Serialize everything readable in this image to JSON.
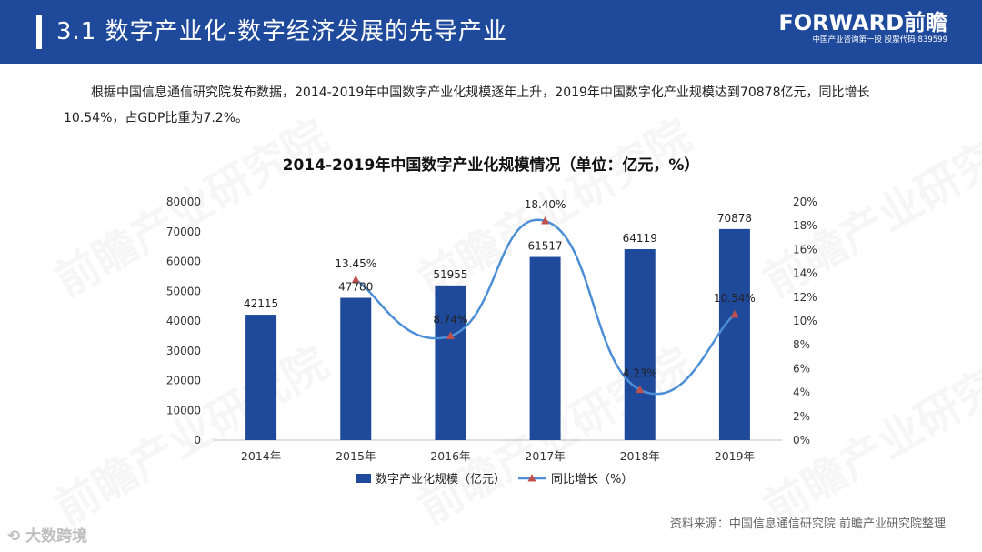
{
  "header": {
    "title": "3.1 数字产业化-数字经济发展的先导产业",
    "logo_brand": "FORWARD前瞻",
    "logo_tagline": "中国产业咨询第一股  股票代码:839599"
  },
  "intro_text": "根据中国信息通信研究院发布数据，2014-2019年中国数字产业化规模逐年上升，2019年中国数字化产业规模达到70878亿元，同比增长10.54%，占GDP比重为7.2%。",
  "chart_data": {
    "type": "bar+line",
    "title": "2014-2019年中国数字产业化规模情况（单位：亿元，%）",
    "categories": [
      "2014年",
      "2015年",
      "2016年",
      "2017年",
      "2018年",
      "2019年"
    ],
    "series": [
      {
        "name": "数字产业化规模（亿元）",
        "kind": "bar",
        "axis": "left",
        "color": "#1f4a9c",
        "values": [
          42115,
          47780,
          51955,
          61517,
          64119,
          70878
        ],
        "labels": [
          "42115",
          "47780",
          "51955",
          "61517",
          "64119",
          "70878"
        ]
      },
      {
        "name": "同比增长（%）",
        "kind": "line",
        "axis": "right",
        "color": "#4d8fd6",
        "marker_color": "#c0504d",
        "values": [
          null,
          13.45,
          8.74,
          18.4,
          4.23,
          10.54
        ],
        "labels": [
          "",
          "13.45%",
          "8.74%",
          "18.40%",
          "4.23%",
          "10.54%"
        ]
      }
    ],
    "y_left": {
      "min": 0,
      "max": 80000,
      "ticks": [
        "0",
        "10000",
        "20000",
        "30000",
        "40000",
        "50000",
        "60000",
        "70000",
        "80000"
      ]
    },
    "y_right": {
      "min": 0,
      "max": 20,
      "ticks": [
        "0%",
        "2%",
        "4%",
        "6%",
        "8%",
        "10%",
        "12%",
        "14%",
        "16%",
        "18%",
        "20%"
      ]
    },
    "grid": false,
    "legend_position": "bottom"
  },
  "source_text": "资料来源：中国信息通信研究院 前瞻产业研究院整理",
  "watermarks": {
    "brand": "前瞻产业研究院",
    "badge": "大数跨境"
  }
}
